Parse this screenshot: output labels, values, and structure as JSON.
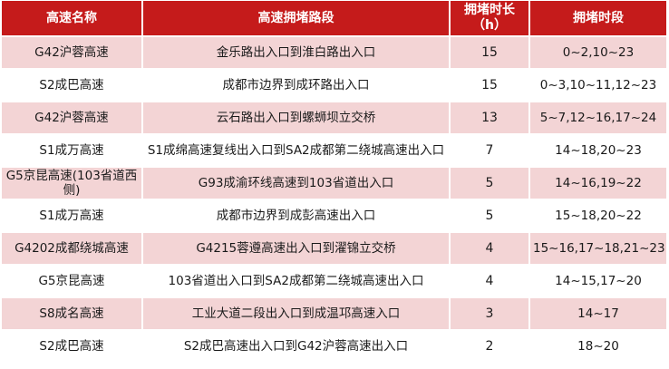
{
  "headers": {
    "road_name": "高速名称",
    "section": "高速拥堵路段",
    "duration": "拥堵时长\n（h）",
    "period": "拥堵时段"
  },
  "rows": [
    {
      "road": "G42沪蓉高速",
      "section": "金乐路出入口到淮白路出入口",
      "duration": "15",
      "period": "0~2,10~23"
    },
    {
      "road": "S2成巴高速",
      "section": "成都市边界到成环路出入口",
      "duration": "15",
      "period": "0~3,10~11,12~23"
    },
    {
      "road": "G42沪蓉高速",
      "section": "云石路出入口到螺蛳坝立交桥",
      "duration": "13",
      "period": "5~7,12~16,17~24"
    },
    {
      "road": "S1成万高速",
      "section": "S1成绵高速复线出入口到SA2成都第二绕城高速出入口",
      "duration": "7",
      "period": "14~18,20~23"
    },
    {
      "road": "G5京昆高速(103省道西侧)",
      "section": "G93成渝环线高速到103省道出入口",
      "duration": "5",
      "period": "14~16,19~22"
    },
    {
      "road": "S1成万高速",
      "section": "成都市边界到成彭高速出入口",
      "duration": "5",
      "period": "15~18,20~22"
    },
    {
      "road": "G4202成都绕城高速",
      "section": "G4215蓉遵高速出入口到濯锦立交桥",
      "duration": "4",
      "period": "15~16,17~18,21~23"
    },
    {
      "road": "G5京昆高速",
      "section": "103省道出入口到SA2成都第二绕城高速出入口",
      "duration": "4",
      "period": "14~15,17~20"
    },
    {
      "road": "S8成名高速",
      "section": "工业大道二段出入口到成温邛高速入口",
      "duration": "3",
      "period": "14~17"
    },
    {
      "road": "S2成巴高速",
      "section": "S2成巴高速出入口到G42沪蓉高速出入口",
      "duration": "2",
      "period": "18~20"
    }
  ]
}
